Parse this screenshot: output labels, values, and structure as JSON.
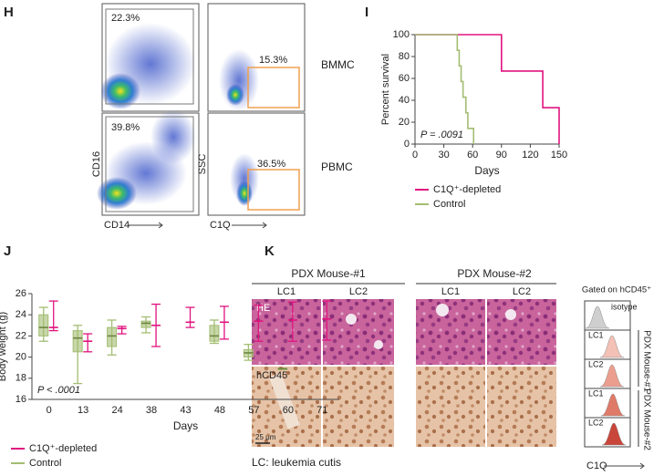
{
  "panel_labels": [
    "H",
    "I",
    "J",
    "K"
  ],
  "flow": {
    "gates": [
      "22.3%",
      "39.8%",
      "15.3%",
      "36.5%"
    ],
    "samples": [
      "BMMC",
      "PBMC"
    ],
    "x_labels": [
      "CD14",
      "C1Q"
    ],
    "y_labels": [
      "CD16",
      "SSC"
    ]
  },
  "chart_data": [
    {
      "type": "line",
      "xlabel": "Days",
      "ylabel": "Percent survival",
      "annotation": "P = .0091",
      "xlim": [
        0,
        150
      ],
      "xticks": [
        0,
        30,
        60,
        90,
        120,
        150
      ],
      "ylim": [
        0,
        100
      ],
      "yticks": [
        0,
        20,
        40,
        60,
        80,
        100
      ],
      "series": [
        {
          "name": "C1Q⁺-depleted",
          "color": "#e0137f",
          "x": [
            0,
            90,
            90,
            133,
            133,
            150,
            150
          ],
          "values": [
            100,
            100,
            66.7,
            66.7,
            33.3,
            33.3,
            0
          ]
        },
        {
          "name": "Control",
          "color": "#a3bd72",
          "x": [
            0,
            44,
            44,
            46,
            46,
            48,
            48,
            50,
            50,
            53,
            53,
            55,
            55,
            61,
            61
          ],
          "values": [
            100,
            100,
            85.7,
            85.7,
            71.4,
            71.4,
            57.1,
            57.1,
            42.9,
            42.9,
            28.6,
            28.6,
            14.3,
            14.3,
            0
          ]
        }
      ]
    },
    {
      "type": "box",
      "xlabel": "Days",
      "ylabel": "Body weight (g)",
      "annotation": "P < .0001",
      "categories": [
        "0",
        "13",
        "24",
        "38",
        "43",
        "48",
        "57",
        "60",
        "71"
      ],
      "ylim": [
        16,
        26
      ],
      "yticks": [
        16,
        18,
        20,
        22,
        24,
        26
      ],
      "series": [
        {
          "name": "C1Q⁺-depleted",
          "color": "#e0137f",
          "min": [
            22.5,
            20.5,
            22.2,
            21,
            22.8,
            21.7,
            21.5,
            21.5,
            21.6
          ],
          "median": [
            22.8,
            21.5,
            22.7,
            23,
            23.3,
            23.3,
            23.4,
            23.5,
            23.6
          ],
          "max": [
            25.3,
            22.2,
            22.9,
            25,
            24.7,
            24.8,
            24.9,
            25.2,
            25.3
          ]
        },
        {
          "name": "Control",
          "color": "#a3bd72",
          "min": [
            21.5,
            17.5,
            20.2,
            22.3,
            null,
            21.3,
            19.7,
            18.9,
            null
          ],
          "q1": [
            22,
            20.5,
            21,
            22.8,
            null,
            21.5,
            20,
            18.9,
            null
          ],
          "median": [
            22.8,
            21.8,
            22,
            23.2,
            null,
            22,
            20.4,
            18.9,
            null
          ],
          "q3": [
            24,
            22.5,
            22.8,
            23.4,
            null,
            23,
            20.7,
            18.9,
            null
          ],
          "max": [
            24.7,
            23,
            23.5,
            23.8,
            null,
            23.5,
            21.2,
            18.9,
            null
          ]
        }
      ]
    }
  ],
  "histology": {
    "mice": [
      "PDX Mouse-#1",
      "PDX Mouse-#2"
    ],
    "lesions": [
      "LC1",
      "LC2"
    ],
    "stains": [
      "HE",
      "hCD45"
    ],
    "scale_bar": "25 μm",
    "footnote": "LC: leukemia cutis"
  },
  "flow_histogram": {
    "title": "Gated on hCD45⁺",
    "rows": [
      "isotype",
      "LC1",
      "LC2",
      "LC1",
      "LC2"
    ],
    "groups": [
      "PDX Mouse-#1",
      "PDX Mouse-#2"
    ],
    "x_label": "C1Q"
  }
}
